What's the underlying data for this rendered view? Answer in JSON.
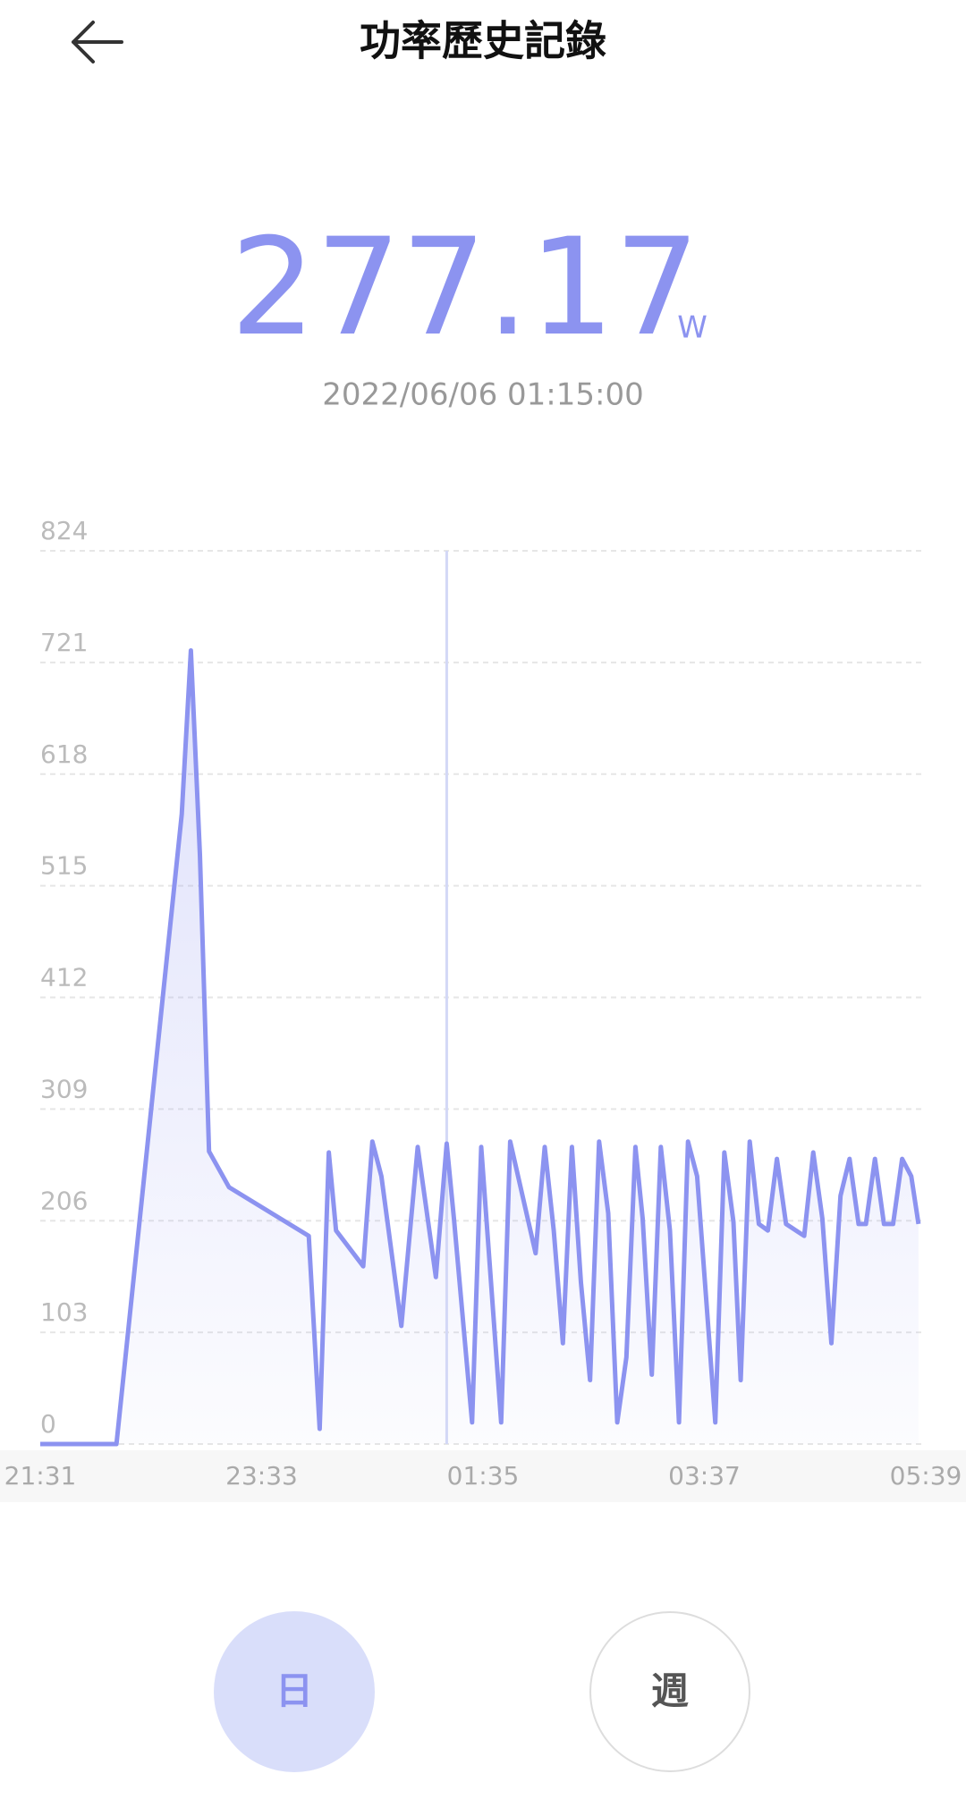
{
  "header": {
    "title": "功率歷史記錄"
  },
  "reading": {
    "value": "277.17",
    "unit": "W",
    "timestamp": "2022/06/06 01:15:00"
  },
  "chart_data": {
    "type": "line",
    "x": [
      "21:31",
      "22:13",
      "22:49",
      "22:54",
      "22:59",
      "23:04",
      "23:15",
      "23:59",
      "00:05",
      "00:10",
      "00:14",
      "00:29",
      "00:34",
      "00:39",
      "00:50",
      "00:59",
      "01:09",
      "01:15",
      "01:19",
      "01:29",
      "01:34",
      "01:45",
      "01:50",
      "02:04",
      "02:09",
      "02:14",
      "02:19",
      "02:24",
      "02:29",
      "02:34",
      "02:39",
      "02:44",
      "02:49",
      "02:54",
      "02:59",
      "03:03",
      "03:08",
      "03:13",
      "03:18",
      "03:23",
      "03:28",
      "03:33",
      "03:43",
      "03:48",
      "03:53",
      "03:57",
      "04:02",
      "04:07",
      "04:12",
      "04:17",
      "04:22",
      "04:32",
      "04:37",
      "04:42",
      "04:47",
      "04:52",
      "04:57",
      "05:02",
      "05:06",
      "05:11",
      "05:16",
      "05:21",
      "05:26",
      "05:31",
      "05:35"
    ],
    "values": [
      0,
      0,
      581,
      732,
      544,
      270,
      237,
      192,
      14,
      269,
      197,
      164,
      279,
      247,
      109,
      274,
      154,
      277.17,
      208,
      20,
      274,
      20,
      279,
      176,
      274,
      197,
      93,
      274,
      149,
      59,
      279,
      213,
      20,
      80,
      274,
      208,
      64,
      274,
      197,
      20,
      279,
      247,
      20,
      269,
      205,
      59,
      279,
      203,
      197,
      263,
      203,
      192,
      269,
      208,
      93,
      229,
      263,
      203,
      203,
      263,
      203,
      203,
      263,
      247,
      203
    ],
    "color": "#8c93f0",
    "xlim": [
      "21:31",
      "05:39"
    ],
    "xticks": [
      "21:31",
      "23:33",
      "01:35",
      "03:37",
      "05:39"
    ],
    "ylim": [
      0,
      824
    ],
    "yticks": [
      0,
      103,
      206,
      309,
      412,
      515,
      618,
      721,
      824
    ],
    "grid": true
  },
  "tabs": [
    "日",
    "週"
  ]
}
